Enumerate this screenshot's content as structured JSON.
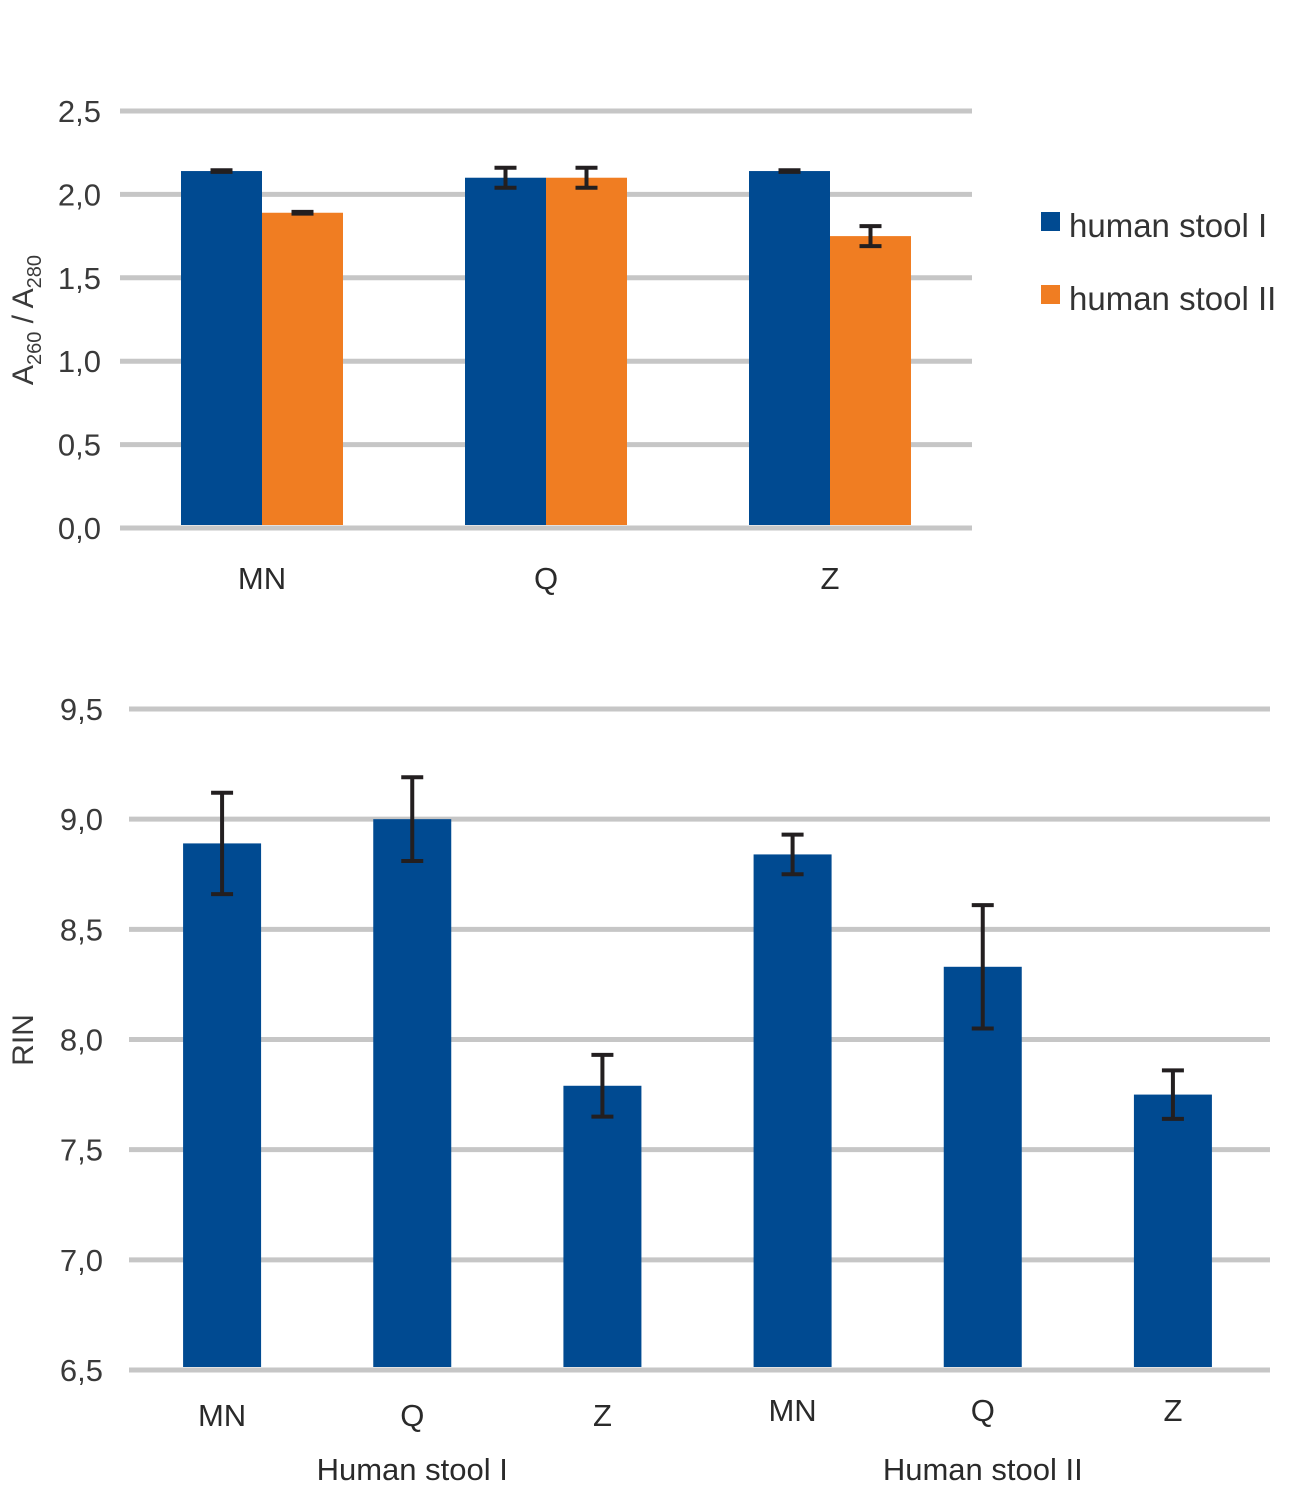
{
  "colors": {
    "blue": "#004a91",
    "orange": "#f07d22",
    "grid": "#c6c6c6",
    "error_bar": "#231f20"
  },
  "chart_data": [
    {
      "type": "bar",
      "title": "",
      "ylabel": {
        "base": "A",
        "sub1": "260",
        "sep": " / A",
        "sub2": "280"
      },
      "xlabel": "",
      "ylim": [
        0,
        2.5
      ],
      "yticks": [
        0,
        0.5,
        1.0,
        1.5,
        2.0,
        2.5
      ],
      "ytick_labels": [
        "0,0",
        "0,5",
        "1,0",
        "1,5",
        "2,0",
        "2,5"
      ],
      "grid": true,
      "legend_position": "right",
      "categories": [
        "MN",
        "Q",
        "Z"
      ],
      "series": [
        {
          "name": "human stool I",
          "color": "#004a91",
          "values": [
            2.14,
            2.1,
            2.14
          ],
          "errors": [
            0.005,
            0.06,
            0.005
          ]
        },
        {
          "name": "human stool II",
          "color": "#f07d22",
          "values": [
            1.89,
            2.1,
            1.75
          ],
          "errors": [
            0.005,
            0.06,
            0.06
          ]
        }
      ]
    },
    {
      "type": "bar",
      "title": "",
      "ylabel": "RIN",
      "xlabel": "",
      "ylim": [
        6.5,
        9.5
      ],
      "yticks": [
        6.5,
        7.0,
        7.5,
        8.0,
        8.5,
        9.0,
        9.5
      ],
      "ytick_labels": [
        "6,5",
        "7,0",
        "7,5",
        "8,0",
        "8,5",
        "9,0",
        "9,5"
      ],
      "grid": true,
      "categories": [
        "MN",
        "Q",
        "Z",
        "MN",
        "Q",
        "Z"
      ],
      "groups": [
        {
          "label": "Human stool I",
          "categories": [
            "MN",
            "Q",
            "Z"
          ]
        },
        {
          "label": "Human stool II",
          "categories": [
            "MN",
            "Q",
            "Z"
          ]
        }
      ],
      "series": [
        {
          "name": "RIN",
          "color": "#004a91",
          "values": [
            8.89,
            9.0,
            7.79,
            8.84,
            8.33,
            7.75
          ],
          "errors": [
            0.23,
            0.19,
            0.14,
            0.09,
            0.28,
            0.11
          ]
        }
      ]
    }
  ]
}
